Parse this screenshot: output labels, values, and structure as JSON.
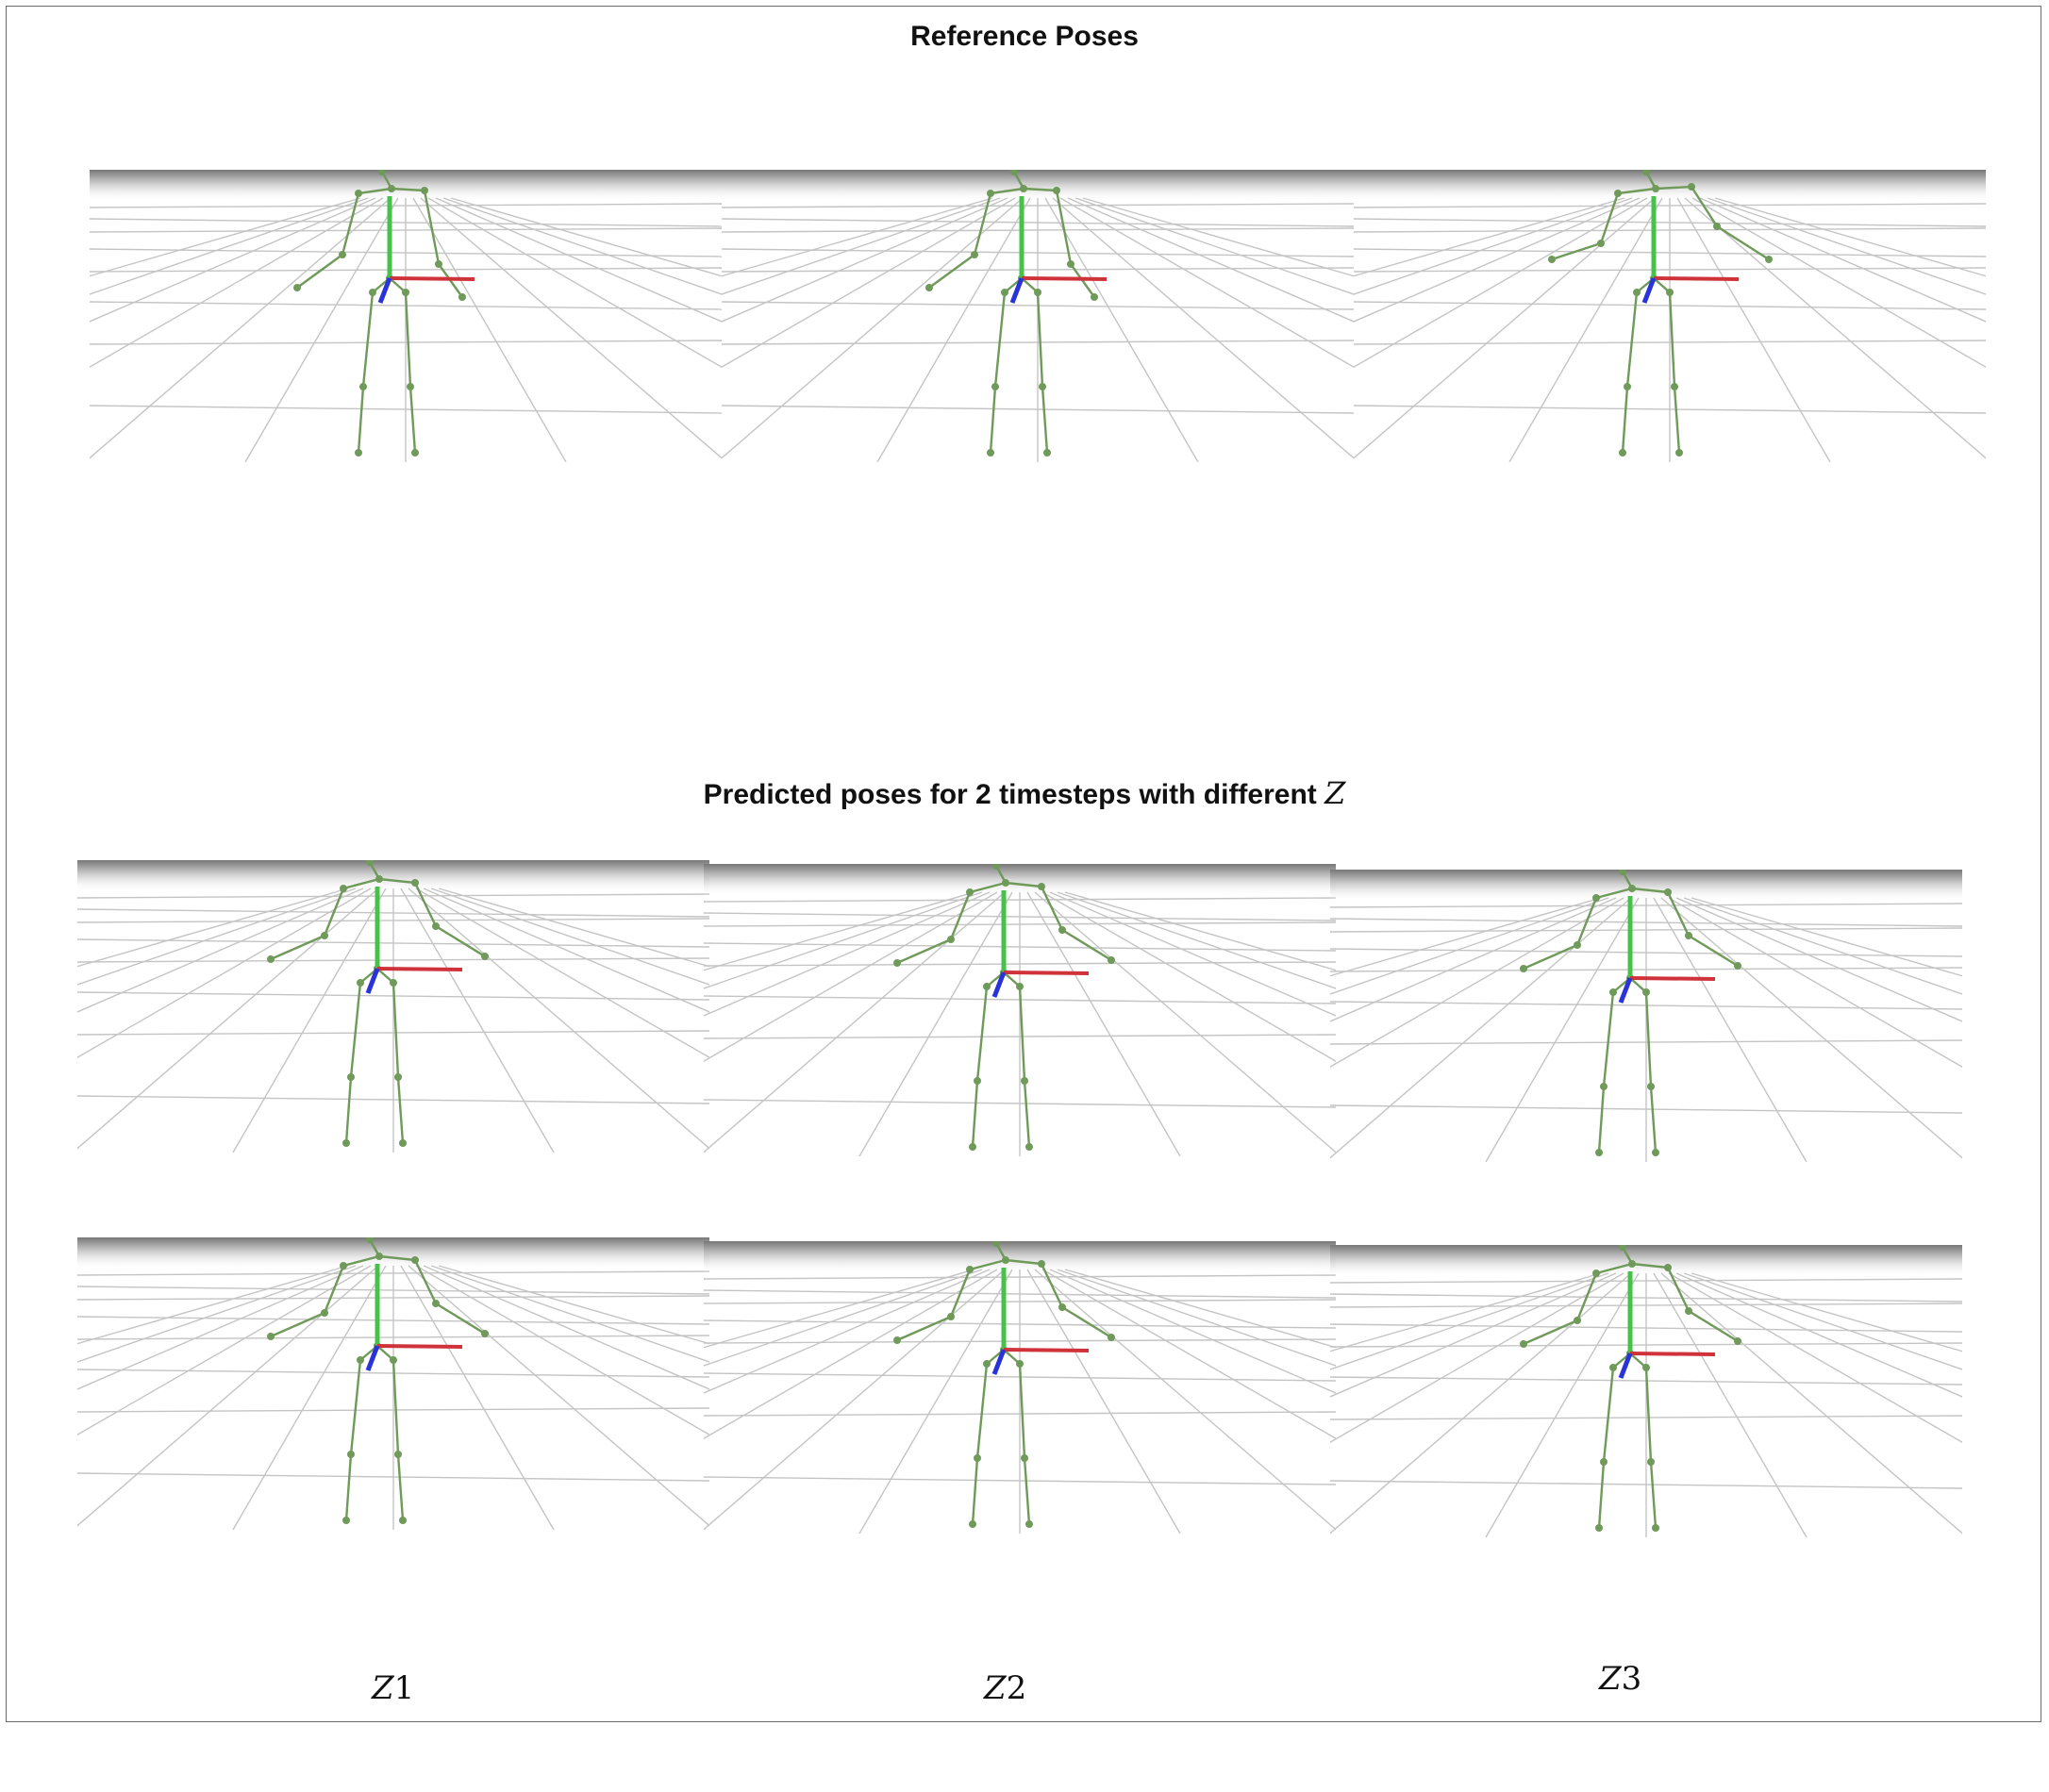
{
  "titles": {
    "reference": "Reference Poses",
    "predicted_prefix": "Predicted poses for 2 timesteps with different ",
    "predicted_symbol": "Z"
  },
  "columns": [
    {
      "symbol": "Z",
      "index": "1"
    },
    {
      "symbol": "Z",
      "index": "2"
    },
    {
      "symbol": "Z",
      "index": "3"
    }
  ],
  "colors": {
    "skeleton": "#6f9a5a",
    "axis_x": "#d0323a",
    "axis_y": "#46c24a",
    "axis_z": "#2a33d8",
    "grid": "#c4c4c4",
    "horizon": "#777777"
  },
  "poses": {
    "reference": [
      "neutral",
      "neutral",
      "arms-raised-right"
    ],
    "predicted_row1": [
      "arms-wide",
      "arms-wide",
      "arms-wide"
    ],
    "predicted_row2": [
      "arms-wide",
      "arms-wide",
      "arms-wide"
    ]
  }
}
